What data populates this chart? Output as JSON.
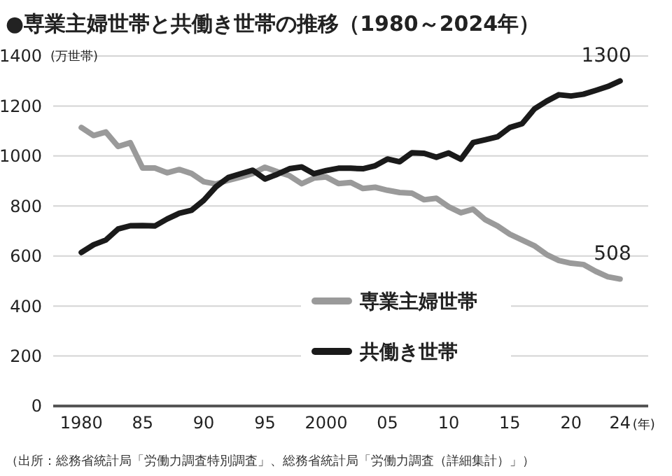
{
  "chart_data": {
    "type": "line",
    "title": "●専業主婦世帯と共働き世帯の推移（1980～2024年）",
    "ylabel": "(万世帯)",
    "xlabel": "(年)",
    "x": [
      1980,
      1981,
      1982,
      1983,
      1984,
      1985,
      1986,
      1987,
      1988,
      1989,
      1990,
      1991,
      1992,
      1993,
      1994,
      1995,
      1996,
      1997,
      1998,
      1999,
      2000,
      2001,
      2002,
      2003,
      2004,
      2005,
      2006,
      2007,
      2008,
      2009,
      2010,
      2011,
      2012,
      2013,
      2014,
      2015,
      2016,
      2017,
      2018,
      2019,
      2020,
      2021,
      2022,
      2023,
      2024
    ],
    "series": [
      {
        "name": "専業主婦世帯",
        "color": "#9a9a9a",
        "values": [
          1114,
          1082,
          1096,
          1038,
          1053,
          952,
          952,
          933,
          946,
          930,
          897,
          888,
          903,
          915,
          930,
          955,
          937,
          921,
          889,
          912,
          916,
          890,
          894,
          870,
          875,
          863,
          854,
          851,
          825,
          831,
          797,
          773,
          787,
          745,
          720,
          687,
          664,
          641,
          606,
          582,
          571,
          566,
          539,
          517,
          508
        ]
      },
      {
        "name": "共働き世帯",
        "color": "#1a1a1a",
        "values": [
          614,
          645,
          664,
          708,
          721,
          722,
          720,
          748,
          771,
          783,
          823,
          877,
          914,
          929,
          943,
          908,
          927,
          949,
          956,
          929,
          942,
          951,
          951,
          949,
          961,
          988,
          977,
          1013,
          1011,
          995,
          1012,
          987,
          1054,
          1065,
          1077,
          1114,
          1129,
          1188,
          1219,
          1245,
          1240,
          1247,
          1262,
          1278,
          1300
        ]
      }
    ],
    "xlim": [
      1977.7,
      2026.3
    ],
    "ylim": [
      0,
      1400
    ],
    "xticks": [
      1980,
      {
        "value": 1985,
        "label": "85"
      },
      {
        "value": 1990,
        "label": "90"
      },
      {
        "value": 1995,
        "label": "95"
      },
      2000,
      {
        "value": 2005,
        "label": "05"
      },
      {
        "value": 2010,
        "label": "10"
      },
      {
        "value": 2015,
        "label": "15"
      },
      {
        "value": 2020,
        "label": "20"
      },
      {
        "value": 2024,
        "label": "24"
      }
    ],
    "yticks": [
      0,
      200,
      400,
      600,
      800,
      1000,
      1200,
      1400
    ],
    "grid": "y",
    "legend": "bottom",
    "line_style": "solid",
    "marker": "none",
    "annotations": [
      {
        "text": "1300",
        "x": 2024,
        "y": 1300
      },
      {
        "text": "508",
        "x": 2024,
        "y": 508
      },
      "（出所：総務省統計局「労働力調査特別調査」、総務省統計局「労働力調査（詳細集計）」）"
    ]
  }
}
